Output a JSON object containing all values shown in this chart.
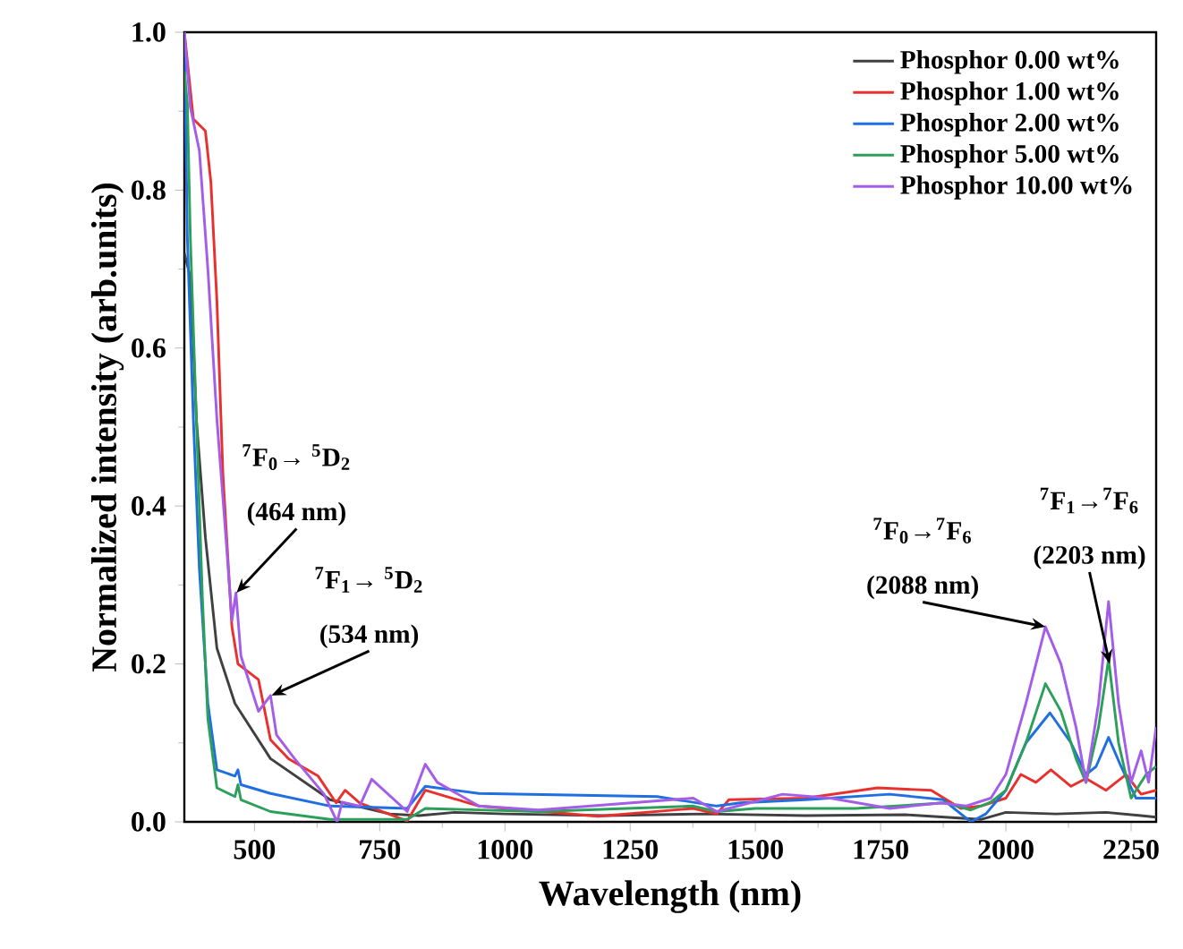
{
  "chart_data": {
    "type": "line",
    "xlabel": "Wavelength (nm)",
    "ylabel": "Normalized intensity (arb.units)",
    "xlim": [
      360,
      2300
    ],
    "ylim": [
      0,
      1.0
    ],
    "xticks": [
      500,
      750,
      1000,
      1250,
      1500,
      1750,
      2000,
      2250
    ],
    "yticks": [
      {
        "value": 0,
        "label": "0.0"
      },
      {
        "value": 0.2,
        "label": "0.2"
      },
      {
        "value": 0.4,
        "label": "0.4"
      },
      {
        "value": 0.6,
        "label": "0.6"
      },
      {
        "value": 0.8,
        "label": "0.8"
      },
      {
        "value": 1.0,
        "label": "1.0"
      }
    ],
    "legend": "top right",
    "series": [
      {
        "name": "Phosphor 0.00 wt%",
        "color": "#404040",
        "x": [
          360,
          372,
          384,
          402,
          425,
          461,
          532,
          651,
          770,
          829,
          900,
          1000,
          1200,
          1400,
          1600,
          1800,
          1900,
          1950,
          2000,
          2100,
          2200,
          2300
        ],
        "values": [
          0.72,
          0.69,
          0.51,
          0.36,
          0.22,
          0.15,
          0.08,
          0.028,
          0.01,
          0.008,
          0.012,
          0.01,
          0.008,
          0.01,
          0.008,
          0.009,
          0.005,
          0.003,
          0.012,
          0.01,
          0.012,
          0.006
        ]
      },
      {
        "name": "Phosphor 1.00 wt%",
        "color": "#e8312f",
        "x": [
          360,
          378,
          402,
          413,
          425,
          437,
          455,
          467,
          508,
          532,
          568,
          627,
          663,
          681,
          710,
          805,
          841,
          948,
          1186,
          1376,
          1423,
          1447,
          1600,
          1744,
          1851,
          1910,
          1950,
          2000,
          2030,
          2060,
          2090,
          2130,
          2160,
          2200,
          2240,
          2270,
          2300
        ],
        "values": [
          1.0,
          0.89,
          0.875,
          0.81,
          0.66,
          0.44,
          0.247,
          0.2,
          0.18,
          0.104,
          0.08,
          0.058,
          0.024,
          0.04,
          0.024,
          0.001,
          0.04,
          0.02,
          0.007,
          0.017,
          0.01,
          0.028,
          0.03,
          0.043,
          0.04,
          0.017,
          0.02,
          0.03,
          0.06,
          0.05,
          0.066,
          0.045,
          0.055,
          0.04,
          0.06,
          0.035,
          0.04
        ]
      },
      {
        "name": "Phosphor 2.00 wt%",
        "color": "#1f6fe0",
        "x": [
          360,
          366,
          378,
          390,
          407,
          425,
          461,
          467,
          473,
          532,
          651,
          805,
          841,
          948,
          1304,
          1423,
          1470,
          1600,
          1768,
          1875,
          1930,
          1960,
          2000,
          2040,
          2088,
          2130,
          2160,
          2180,
          2205,
          2230,
          2260,
          2300
        ],
        "values": [
          1.0,
          0.74,
          0.51,
          0.32,
          0.15,
          0.066,
          0.058,
          0.066,
          0.047,
          0.036,
          0.02,
          0.017,
          0.045,
          0.036,
          0.032,
          0.02,
          0.024,
          0.028,
          0.035,
          0.028,
          0.0,
          0.01,
          0.04,
          0.1,
          0.138,
          0.1,
          0.06,
          0.07,
          0.107,
          0.07,
          0.03,
          0.03
        ]
      },
      {
        "name": "Phosphor 5.00 wt%",
        "color": "#2ca05a",
        "x": [
          360,
          366,
          372,
          384,
          396,
          407,
          425,
          461,
          467,
          473,
          532,
          651,
          805,
          841,
          1067,
          1376,
          1423,
          1500,
          1700,
          1880,
          1930,
          1970,
          2000,
          2040,
          2079,
          2110,
          2140,
          2160,
          2185,
          2205,
          2225,
          2250,
          2280,
          2300
        ],
        "values": [
          0.95,
          0.91,
          0.74,
          0.51,
          0.285,
          0.13,
          0.043,
          0.032,
          0.047,
          0.028,
          0.013,
          0.003,
          0.003,
          0.017,
          0.013,
          0.02,
          0.013,
          0.017,
          0.017,
          0.024,
          0.015,
          0.025,
          0.04,
          0.1,
          0.175,
          0.14,
          0.08,
          0.05,
          0.12,
          0.206,
          0.1,
          0.03,
          0.06,
          0.07
        ]
      },
      {
        "name": "Phosphor 10.00 wt%",
        "color": "#a35de8",
        "x": [
          360,
          372,
          390,
          407,
          425,
          443,
          455,
          463,
          473,
          508,
          532,
          544,
          580,
          639,
          665,
          675,
          710,
          734,
          805,
          841,
          865,
          948,
          1067,
          1376,
          1423,
          1554,
          1650,
          1768,
          1870,
          1920,
          1970,
          2000,
          2040,
          2079,
          2110,
          2140,
          2160,
          2185,
          2205,
          2225,
          2250,
          2270,
          2285,
          2300
        ],
        "values": [
          1.0,
          0.905,
          0.85,
          0.7,
          0.51,
          0.36,
          0.255,
          0.29,
          0.21,
          0.14,
          0.16,
          0.11,
          0.08,
          0.035,
          0.0,
          0.025,
          0.02,
          0.054,
          0.013,
          0.073,
          0.05,
          0.02,
          0.015,
          0.03,
          0.013,
          0.035,
          0.03,
          0.017,
          0.024,
          0.02,
          0.03,
          0.06,
          0.15,
          0.247,
          0.2,
          0.12,
          0.05,
          0.15,
          0.279,
          0.15,
          0.05,
          0.09,
          0.05,
          0.12
        ]
      }
    ],
    "annotations": [
      "$^{7}$F$_{0}$→ $^{5}$D$_{2}$",
      {
        "text": "(464 nm)",
        "x": 464,
        "y": 0.29
      },
      "$^{7}$F$_{1}$→ $^{5}$D$_{2}$",
      {
        "text": "(534 nm)",
        "x": 534,
        "y": 0.16
      },
      "$^{7}$F$_{0}$→$^{7}$F$_{6}$",
      {
        "text": "(2088 nm)",
        "x": 2079,
        "y": 0.247
      },
      "$^{7}$F$_{1}$→$^{7}$F$_{6}$",
      {
        "text": "(2203 nm)",
        "x": 2207,
        "y": 0.2
      }
    ]
  }
}
